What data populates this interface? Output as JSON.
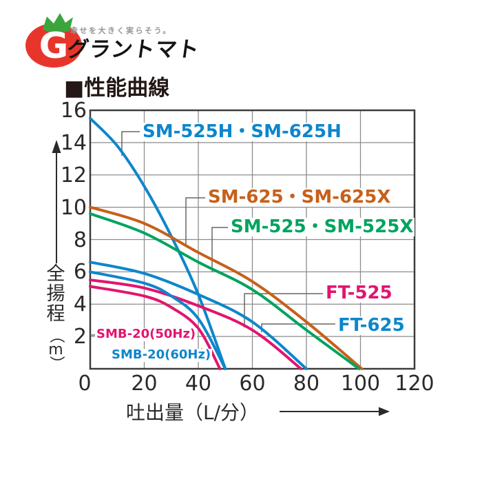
{
  "logo": {
    "tagline": "幸せを大きく実らそう。",
    "brand": "グラントマト",
    "monogram": "G",
    "tomato_color": "#e8352b",
    "leaf_color": "#3ca43d"
  },
  "title": "■性能曲線",
  "chart_data": {
    "type": "line",
    "title": "性能曲線",
    "xlabel": "吐出量（L/分）",
    "ylabel": "全揚程（m）",
    "xlim": [
      0,
      120
    ],
    "ylim": [
      0,
      16
    ],
    "x_ticks": [
      0,
      20,
      40,
      60,
      80,
      100,
      120
    ],
    "y_ticks": [
      2,
      4,
      6,
      8,
      10,
      12,
      14,
      16
    ],
    "grid": true,
    "legend_position": "inline-labels",
    "colors": {
      "blue": "#0d86cc",
      "orange": "#c7601a",
      "green": "#00a35f",
      "magenta": "#e2146f",
      "grid": "#8c8c8c",
      "axis": "#3c3c3c",
      "tick_text": "#2a2a2a",
      "leader": "#666666"
    },
    "series": [
      {
        "name": "SM-525H・SM-625H",
        "color": "#0d86cc",
        "points": [
          [
            0,
            15.5
          ],
          [
            10,
            13.8
          ],
          [
            20,
            11.3
          ],
          [
            30,
            8.2
          ],
          [
            40,
            4.6
          ],
          [
            50,
            0
          ]
        ]
      },
      {
        "name": "SM-625・SM-625X",
        "color": "#c7601a",
        "points": [
          [
            0,
            10.0
          ],
          [
            20,
            9.0
          ],
          [
            40,
            7.2
          ],
          [
            60,
            5.4
          ],
          [
            80,
            2.9
          ],
          [
            100.5,
            0
          ]
        ]
      },
      {
        "name": "SM-525・SM-525X",
        "color": "#00a35f",
        "points": [
          [
            0,
            9.6
          ],
          [
            20,
            8.4
          ],
          [
            40,
            6.6
          ],
          [
            60,
            4.9
          ],
          [
            80,
            2.4
          ],
          [
            99.5,
            0
          ]
        ]
      },
      {
        "name": "FT-525",
        "color": "#e2146f",
        "points": [
          [
            0,
            5.5
          ],
          [
            20,
            5.0
          ],
          [
            40,
            3.9
          ],
          [
            60,
            2.4
          ],
          [
            78,
            0
          ]
        ]
      },
      {
        "name": "FT-625",
        "color": "#0d86cc",
        "points": [
          [
            0,
            6.6
          ],
          [
            20,
            5.9
          ],
          [
            40,
            4.6
          ],
          [
            60,
            2.9
          ],
          [
            80,
            0
          ]
        ]
      },
      {
        "name": "SMB-20(50Hz)",
        "color": "#e2146f",
        "points": [
          [
            0,
            5.1
          ],
          [
            20,
            4.5
          ],
          [
            30,
            3.8
          ],
          [
            40,
            2.5
          ],
          [
            48,
            0
          ]
        ]
      },
      {
        "name": "SMB-20(60Hz)",
        "color": "#0d86cc",
        "points": [
          [
            0,
            6.0
          ],
          [
            20,
            5.3
          ],
          [
            30,
            4.5
          ],
          [
            40,
            3.1
          ],
          [
            50,
            0
          ]
        ]
      }
    ]
  }
}
